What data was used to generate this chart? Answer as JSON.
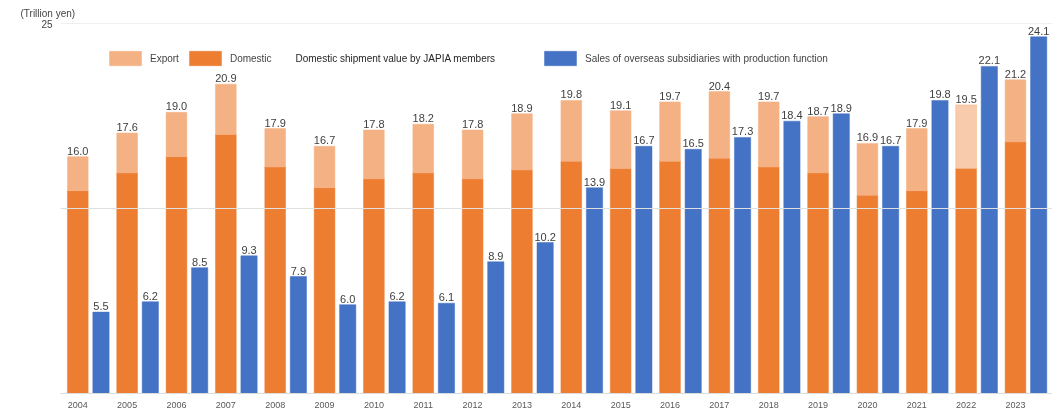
{
  "chart_data": {
    "type": "bar",
    "stacked": true,
    "ylabel": "(Trillion yen)",
    "categories": [
      "2004",
      "2005",
      "2006",
      "2007",
      "2008",
      "2009",
      "2010",
      "2011",
      "2012",
      "2013",
      "2014",
      "2015",
      "2016",
      "2017",
      "2018",
      "2019",
      "2020",
      "2021",
      "2022",
      "2023"
    ],
    "series": [
      {
        "name": "Domestic",
        "color": "#ed7d31",
        "values": [
          13.7,
          14.9,
          16.0,
          17.5,
          15.3,
          13.9,
          14.5,
          14.9,
          14.5,
          15.1,
          15.7,
          15.2,
          15.7,
          15.9,
          15.3,
          14.9,
          13.4,
          13.7,
          15.2,
          17.0
        ]
      },
      {
        "name": "Export",
        "color": "#f4b183",
        "colors": [
          "#f4b183",
          "#f4b183",
          "#f4b183",
          "#f4b183",
          "#f4b183",
          "#f4b183",
          "#f4b183",
          "#f4b183",
          "#f4b183",
          "#f4b183",
          "#f4b183",
          "#f4b183",
          "#f4b183",
          "#f4b183",
          "#f4b183",
          "#f4b183",
          "#f4b183",
          "#f4b183",
          "#f8cbad",
          "#f4b183"
        ],
        "values": [
          2.3,
          2.7,
          3.0,
          3.4,
          2.6,
          2.8,
          3.3,
          3.3,
          3.3,
          3.8,
          4.1,
          3.9,
          4.0,
          4.5,
          4.4,
          3.8,
          3.5,
          4.2,
          4.3,
          4.2
        ]
      },
      {
        "name": "Sales of overseas subsidiaries with production function",
        "color": "#4472c4",
        "axis": "y2",
        "values": [
          5.5,
          6.2,
          8.5,
          9.3,
          7.9,
          6.0,
          6.2,
          6.1,
          8.9,
          10.2,
          13.9,
          16.7,
          16.5,
          17.3,
          18.4,
          18.9,
          16.7,
          19.8,
          22.1,
          24.1
        ],
        "value_labels": [
          "5.5",
          "6.2",
          "8.5",
          "9.3",
          "7.9",
          "6.0",
          "6.2",
          "6.1",
          "8.9",
          "10.2",
          "13.9",
          "16.7",
          "16.5",
          "17.3",
          "18.4",
          "18.9",
          "16.7",
          "19.8",
          "22.1",
          "24.1"
        ]
      }
    ],
    "annotations": [
      "Domestic shipment value by JAPIA members",
      {
        "text": "16.0",
        "x": "2004",
        "y": 16.0
      },
      {
        "text": "17.6",
        "x": "2005",
        "y": 17.6
      },
      {
        "text": "19.0",
        "x": "2006",
        "y": 19.0
      },
      {
        "text": "20.9",
        "x": "2007",
        "y": 20.9
      },
      {
        "text": "17.9",
        "x": "2008",
        "y": 17.9
      },
      {
        "text": "16.7",
        "x": "2009",
        "y": 16.7
      },
      {
        "text": "17.8",
        "x": "2010",
        "y": 17.8
      },
      {
        "text": "18.2",
        "x": "2011",
        "y": 18.2
      },
      {
        "text": "17.8",
        "x": "2012",
        "y": 17.8
      },
      {
        "text": "18.9",
        "x": "2013",
        "y": 18.9
      },
      {
        "text": "19.8",
        "x": "2014",
        "y": 19.8
      },
      {
        "text": "19.1",
        "x": "2015",
        "y": 19.1
      },
      {
        "text": "19.7",
        "x": "2016",
        "y": 19.7
      },
      {
        "text": "20.4",
        "x": "2017",
        "y": 20.4
      },
      {
        "text": "19.7",
        "x": "2018",
        "y": 19.7
      },
      {
        "text": "18.7",
        "x": "2019",
        "y": 18.7
      },
      {
        "text": "16.9",
        "x": "2020",
        "y": 16.9
      },
      {
        "text": "17.9",
        "x": "2021",
        "y": 17.9
      },
      {
        "text": "19.5",
        "x": "2022",
        "y": 19.5
      },
      {
        "text": "21.2",
        "x": "2023",
        "y": 21.2
      }
    ],
    "ylim": [
      0,
      25
    ],
    "yticks": [
      {
        "value": 0,
        "label": null
      },
      {
        "value": 12.5,
        "label": null
      },
      25
    ],
    "y2lim": [
      0,
      25
    ],
    "grid": "y",
    "legend": "top"
  }
}
